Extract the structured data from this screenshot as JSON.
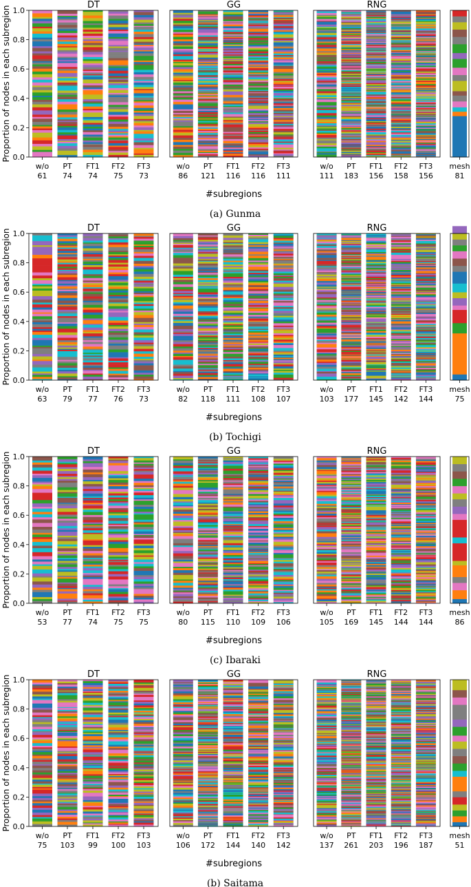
{
  "figure": {
    "ylabel": "Proportion of nodes in each subregion",
    "xlabel": "#subregions",
    "yticks": [
      "0.0",
      "0.2",
      "0.4",
      "0.6",
      "0.8",
      "1.0"
    ],
    "group_titles": [
      "DT",
      "GG",
      "RNG"
    ],
    "variants": [
      "w/o",
      "PT",
      "FT1",
      "FT2",
      "FT3"
    ],
    "mesh_label": "mesh",
    "palette": [
      "#1f77b4",
      "#ff7f0e",
      "#2ca02c",
      "#d62728",
      "#9467bd",
      "#8c564b",
      "#e377c2",
      "#7f7f7f",
      "#bcbd22",
      "#17becf"
    ]
  },
  "chart_data": [
    {
      "type": "bar",
      "stacked": true,
      "caption": "(a) Gunma",
      "ylim": [
        0,
        1
      ],
      "groups": [
        {
          "title": "DT",
          "categories": [
            "w/o",
            "PT",
            "FT1",
            "FT2",
            "FT3"
          ],
          "subregion_counts": [
            61,
            74,
            74,
            75,
            73
          ]
        },
        {
          "title": "GG",
          "categories": [
            "w/o",
            "PT",
            "FT1",
            "FT2",
            "FT3"
          ],
          "subregion_counts": [
            86,
            121,
            116,
            116,
            111
          ]
        },
        {
          "title": "RNG",
          "categories": [
            "w/o",
            "PT",
            "FT1",
            "FT2",
            "FT3"
          ],
          "subregion_counts": [
            111,
            183,
            156,
            158,
            156
          ]
        }
      ],
      "mesh": {
        "label": "mesh",
        "subregion_counts": [
          81
        ],
        "segments": [
          {
            "value": 0.28,
            "color": "#1f77b4"
          },
          {
            "value": 0.03,
            "color": "#ff7f0e"
          },
          {
            "value": 0.03,
            "color": "#17becf"
          },
          {
            "value": 0.04,
            "color": "#e377c2"
          },
          {
            "value": 0.04,
            "color": "#7f7f7f"
          },
          {
            "value": 0.03,
            "color": "#8c564b"
          },
          {
            "value": 0.07,
            "color": "#bcbd22"
          },
          {
            "value": 0.04,
            "color": "#7f7f7f"
          },
          {
            "value": 0.05,
            "color": "#e377c2"
          },
          {
            "value": 0.06,
            "color": "#2ca02c"
          },
          {
            "value": 0.04,
            "color": "#9467bd"
          },
          {
            "value": 0.06,
            "color": "#2ca02c"
          },
          {
            "value": 0.05,
            "color": "#7f7f7f"
          },
          {
            "value": 0.05,
            "color": "#8c564b"
          },
          {
            "value": 0.05,
            "color": "#bcbd22"
          },
          {
            "value": 0.04,
            "color": "#7f7f7f"
          },
          {
            "value": 0.04,
            "color": "#d62728"
          }
        ]
      }
    },
    {
      "type": "bar",
      "stacked": true,
      "caption": "(b) Tochigi",
      "ylim": [
        0,
        1
      ],
      "groups": [
        {
          "title": "DT",
          "categories": [
            "w/o",
            "PT",
            "FT1",
            "FT2",
            "FT3"
          ],
          "subregion_counts": [
            63,
            79,
            77,
            76,
            73
          ]
        },
        {
          "title": "GG",
          "categories": [
            "w/o",
            "PT",
            "FT1",
            "FT2",
            "FT3"
          ],
          "subregion_counts": [
            82,
            118,
            111,
            108,
            107
          ]
        },
        {
          "title": "RNG",
          "categories": [
            "w/o",
            "PT",
            "FT1",
            "FT2",
            "FT3"
          ],
          "subregion_counts": [
            103,
            177,
            145,
            142,
            144
          ]
        }
      ],
      "mesh": {
        "label": "mesh",
        "subregion_counts": [
          75
        ],
        "segments": [
          {
            "value": 0.04,
            "color": "#1f77b4"
          },
          {
            "value": 0.28,
            "color": "#ff7f0e"
          },
          {
            "value": 0.07,
            "color": "#2ca02c"
          },
          {
            "value": 0.09,
            "color": "#d62728"
          },
          {
            "value": 0.03,
            "color": "#e377c2"
          },
          {
            "value": 0.05,
            "color": "#9467bd"
          },
          {
            "value": 0.04,
            "color": "#bcbd22"
          },
          {
            "value": 0.06,
            "color": "#17becf"
          },
          {
            "value": 0.08,
            "color": "#1f77b4"
          },
          {
            "value": 0.04,
            "color": "#7f7f7f"
          },
          {
            "value": 0.05,
            "color": "#8c564b"
          },
          {
            "value": 0.05,
            "color": "#e377c2"
          },
          {
            "value": 0.04,
            "color": "#2ca02c"
          },
          {
            "value": 0.04,
            "color": "#7f7f7f"
          },
          {
            "value": 0.04,
            "color": "#bcbd22"
          },
          {
            "value": 0.05,
            "color": "#9467bd"
          }
        ]
      }
    },
    {
      "type": "bar",
      "stacked": true,
      "caption": "(c) Ibaraki",
      "ylim": [
        0,
        1
      ],
      "groups": [
        {
          "title": "DT",
          "categories": [
            "w/o",
            "PT",
            "FT1",
            "FT2",
            "FT3"
          ],
          "subregion_counts": [
            53,
            77,
            74,
            75,
            75
          ]
        },
        {
          "title": "GG",
          "categories": [
            "w/o",
            "PT",
            "FT1",
            "FT2",
            "FT3"
          ],
          "subregion_counts": [
            80,
            115,
            110,
            109,
            106
          ]
        },
        {
          "title": "RNG",
          "categories": [
            "w/o",
            "PT",
            "FT1",
            "FT2",
            "FT3"
          ],
          "subregion_counts": [
            105,
            169,
            145,
            144,
            144
          ]
        }
      ],
      "mesh": {
        "label": "mesh",
        "subregion_counts": [
          86
        ],
        "segments": [
          {
            "value": 0.03,
            "color": "#1f77b4"
          },
          {
            "value": 0.06,
            "color": "#ff7f0e"
          },
          {
            "value": 0.05,
            "color": "#e377c2"
          },
          {
            "value": 0.04,
            "color": "#7f7f7f"
          },
          {
            "value": 0.08,
            "color": "#ff7f0e"
          },
          {
            "value": 0.03,
            "color": "#bcbd22"
          },
          {
            "value": 0.12,
            "color": "#d62728"
          },
          {
            "value": 0.04,
            "color": "#17becf"
          },
          {
            "value": 0.12,
            "color": "#d62728"
          },
          {
            "value": 0.04,
            "color": "#e377c2"
          },
          {
            "value": 0.05,
            "color": "#9467bd"
          },
          {
            "value": 0.05,
            "color": "#7f7f7f"
          },
          {
            "value": 0.04,
            "color": "#bcbd22"
          },
          {
            "value": 0.05,
            "color": "#e377c2"
          },
          {
            "value": 0.05,
            "color": "#2ca02c"
          },
          {
            "value": 0.05,
            "color": "#8c564b"
          },
          {
            "value": 0.05,
            "color": "#7f7f7f"
          },
          {
            "value": 0.05,
            "color": "#bcbd22"
          }
        ]
      }
    },
    {
      "type": "bar",
      "stacked": true,
      "caption": "(b) Saitama",
      "ylim": [
        0,
        1
      ],
      "groups": [
        {
          "title": "DT",
          "categories": [
            "w/o",
            "PT",
            "FT1",
            "FT2",
            "FT3"
          ],
          "subregion_counts": [
            75,
            103,
            99,
            100,
            103
          ]
        },
        {
          "title": "GG",
          "categories": [
            "w/o",
            "PT",
            "FT1",
            "FT2",
            "FT3"
          ],
          "subregion_counts": [
            106,
            172,
            144,
            140,
            142
          ]
        },
        {
          "title": "RNG",
          "categories": [
            "w/o",
            "PT",
            "FT1",
            "FT2",
            "FT3"
          ],
          "subregion_counts": [
            137,
            261,
            203,
            196,
            187
          ]
        }
      ],
      "mesh": {
        "label": "mesh",
        "subregion_counts": [
          51
        ],
        "segments": [
          {
            "value": 0.03,
            "color": "#1f77b4"
          },
          {
            "value": 0.04,
            "color": "#ff7f0e"
          },
          {
            "value": 0.04,
            "color": "#2ca02c"
          },
          {
            "value": 0.04,
            "color": "#bcbd22"
          },
          {
            "value": 0.05,
            "color": "#d62728"
          },
          {
            "value": 0.04,
            "color": "#7f7f7f"
          },
          {
            "value": 0.1,
            "color": "#ff7f0e"
          },
          {
            "value": 0.04,
            "color": "#17becf"
          },
          {
            "value": 0.05,
            "color": "#2ca02c"
          },
          {
            "value": 0.05,
            "color": "#8c564b"
          },
          {
            "value": 0.05,
            "color": "#7f7f7f"
          },
          {
            "value": 0.05,
            "color": "#bcbd22"
          },
          {
            "value": 0.04,
            "color": "#e377c2"
          },
          {
            "value": 0.06,
            "color": "#2ca02c"
          },
          {
            "value": 0.05,
            "color": "#9467bd"
          },
          {
            "value": 0.1,
            "color": "#7f7f7f"
          },
          {
            "value": 0.05,
            "color": "#e377c2"
          },
          {
            "value": 0.05,
            "color": "#8c564b"
          },
          {
            "value": 0.07,
            "color": "#bcbd22"
          }
        ]
      }
    }
  ]
}
